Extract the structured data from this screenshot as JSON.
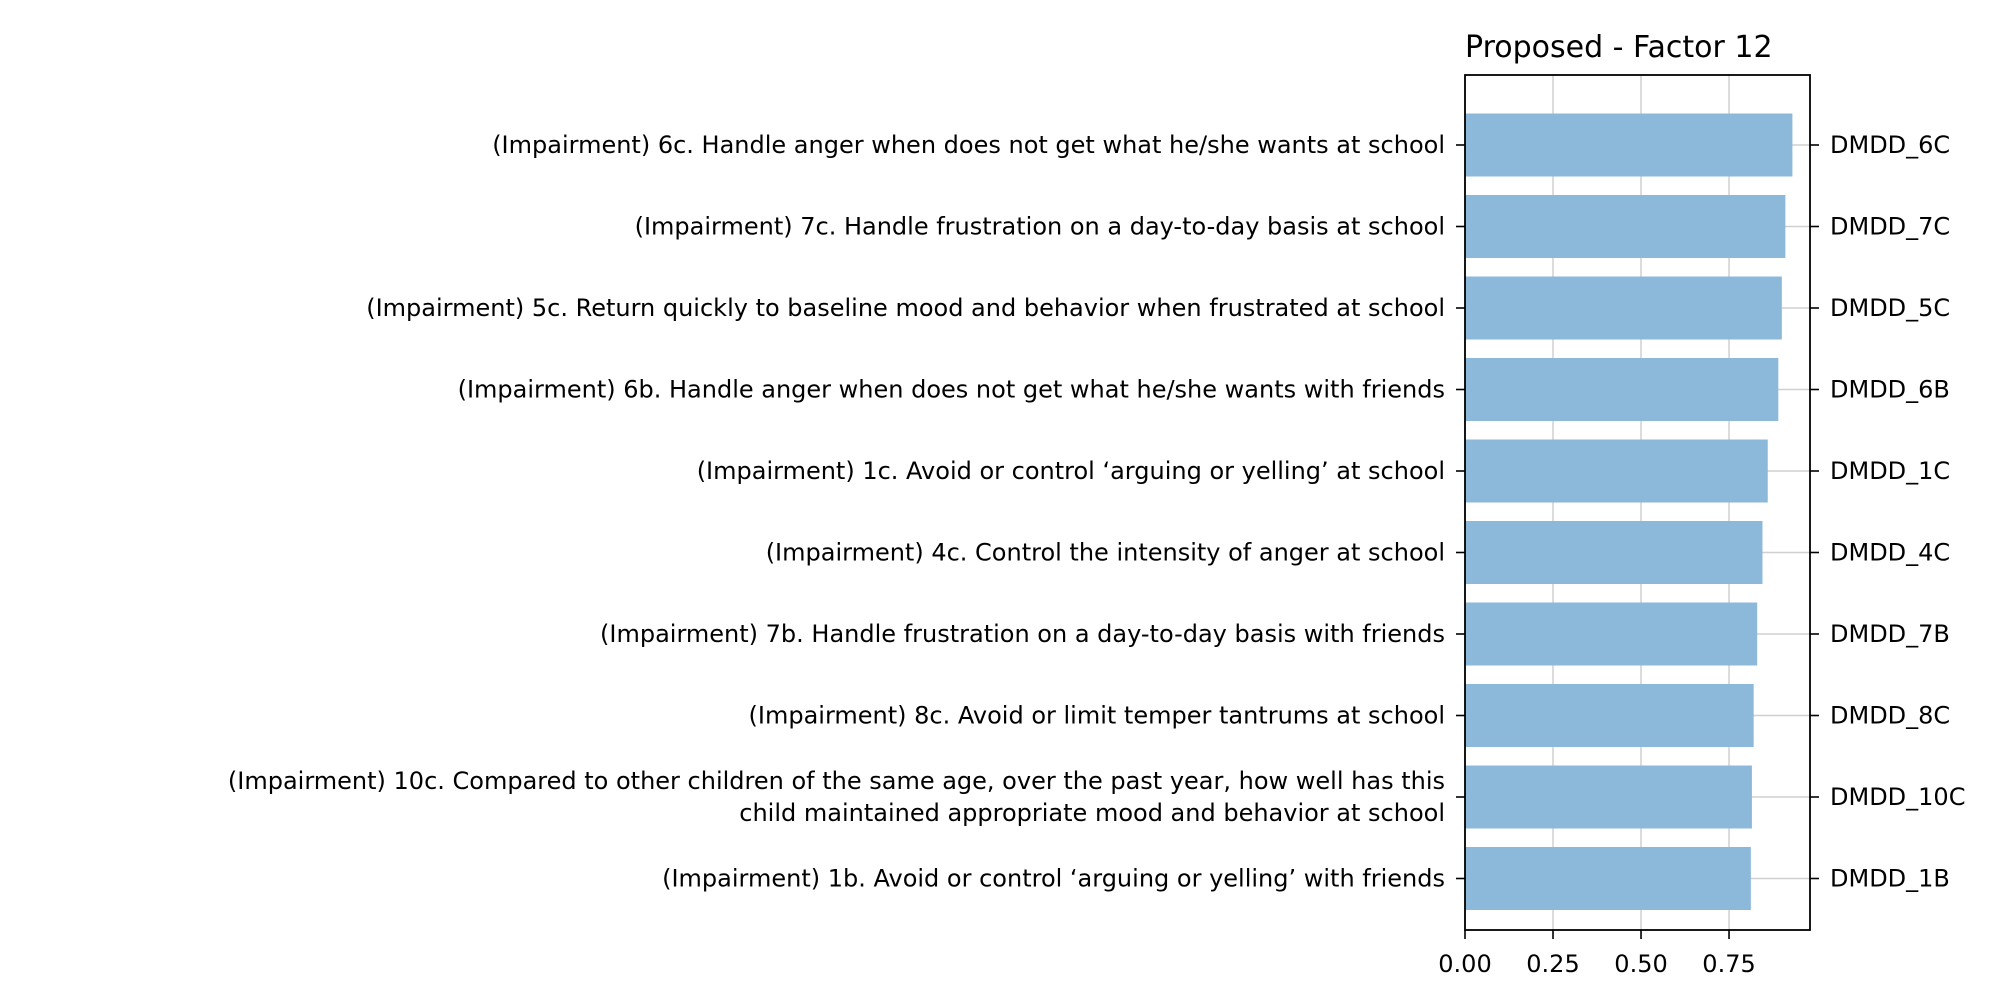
{
  "chart_data": {
    "type": "bar",
    "orientation": "horizontal",
    "title": "Proposed - Factor 12",
    "xlabel": "",
    "ylabel": "",
    "xlim": [
      0,
      0.98
    ],
    "xticks": [
      "0.00",
      "0.25",
      "0.50",
      "0.75"
    ],
    "xtick_values": [
      0,
      0.25,
      0.5,
      0.75
    ],
    "grid": true,
    "bar_color": "#8cb9d9",
    "categories": [
      "(Impairment) 6c. Handle anger when does not get what he/she wants at school",
      "(Impairment) 7c. Handle frustration on a day-to-day basis at school",
      "(Impairment) 5c. Return quickly to baseline mood and behavior when frustrated at school",
      "(Impairment) 6b. Handle anger when does not get what he/she wants with friends",
      "(Impairment) 1c. Avoid or control ‘arguing or yelling’ at school",
      "(Impairment) 4c. Control the intensity of anger at school",
      "(Impairment) 7b. Handle frustration on a day-to-day basis with friends",
      "(Impairment) 8c. Avoid or limit temper tantrums at school",
      "(Impairment) 10c. Compared to other children of the same age, over the past year, how well has this\nchild maintained appropriate mood and behavior at school",
      "(Impairment) 1b. Avoid or control ‘arguing or yelling’ with friends"
    ],
    "right_labels": [
      "DMDD_6C",
      "DMDD_7C",
      "DMDD_5C",
      "DMDD_6B",
      "DMDD_1C",
      "DMDD_4C",
      "DMDD_7B",
      "DMDD_8C",
      "DMDD_10C",
      "DMDD_1B"
    ],
    "values": [
      0.93,
      0.91,
      0.9,
      0.89,
      0.86,
      0.845,
      0.83,
      0.82,
      0.815,
      0.812
    ]
  }
}
